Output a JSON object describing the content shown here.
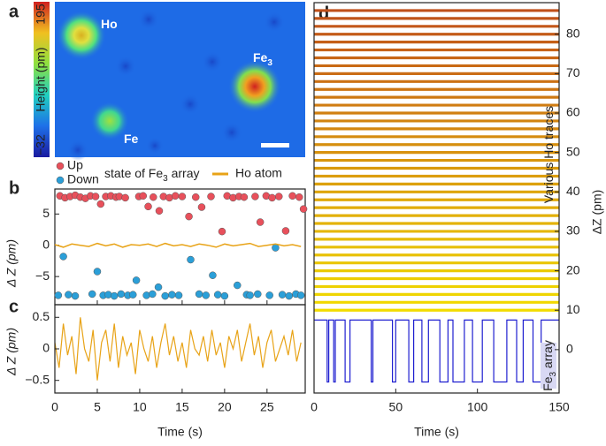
{
  "chart_data": [
    {
      "type": "image",
      "panel_label": "a",
      "colorbar_label": "Height (pm)",
      "clim": [
        -32,
        195
      ],
      "colorbar_ticks": [
        195,
        {
          "value": -32,
          "label": "−32"
        }
      ],
      "annotations": [
        {
          "text": "Ho"
        },
        {
          "text": "Fe",
          "sub": "3"
        },
        {
          "text": "Fe"
        }
      ]
    },
    {
      "type": "scatter",
      "panel_label": "b",
      "ylabel": "Δ Z (pm)",
      "legend": {
        "title": {
          "text": "state of Fe",
          "sub": "3",
          "tail": " array"
        }
      },
      "xlim": [
        0,
        29.5
      ],
      "ylim": [
        -9.5,
        9
      ],
      "xticks": [
        0,
        5,
        10,
        15,
        20,
        25
      ],
      "yticks": [
        {
          "value": -5,
          "label": "−5"
        },
        0,
        5
      ],
      "series": [
        {
          "name": "Up",
          "color": "#e8505b",
          "x": [
            0.6,
            1.2,
            1.8,
            2.4,
            3.0,
            3.6,
            4.2,
            4.8,
            5.4,
            6.0,
            6.6,
            7.2,
            7.6,
            8.3,
            9.9,
            10.4,
            11.0,
            11.6,
            12.3,
            12.8,
            13.5,
            14.2,
            15.0,
            15.8,
            16.6,
            17.3,
            18.4,
            19.7,
            20.3,
            21.0,
            21.7,
            22.3,
            23.6,
            24.2,
            24.9,
            25.6,
            26.4,
            27.2,
            28.0,
            28.8,
            29.3
          ],
          "values": [
            7.9,
            7.6,
            7.8,
            8.0,
            7.7,
            7.5,
            7.9,
            7.8,
            6.6,
            7.8,
            7.9,
            7.7,
            7.8,
            7.6,
            7.8,
            7.9,
            6.2,
            7.7,
            5.5,
            7.8,
            7.6,
            7.9,
            7.8,
            4.6,
            7.7,
            6.1,
            7.8,
            2.2,
            7.9,
            7.6,
            7.8,
            7.7,
            7.8,
            3.7,
            7.9,
            7.6,
            7.8,
            2.3,
            7.9,
            7.7,
            5.8
          ]
        },
        {
          "name": "Down",
          "color": "#2b9fd8",
          "x": [
            0.4,
            1.0,
            1.6,
            2.4,
            4.4,
            5.0,
            5.7,
            6.3,
            7.0,
            7.8,
            8.6,
            9.2,
            9.6,
            10.8,
            11.5,
            12.2,
            13.0,
            13.8,
            14.6,
            16.0,
            17.0,
            17.8,
            18.6,
            19.2,
            20.0,
            21.5,
            22.6,
            23.0,
            23.9,
            25.3,
            26.0,
            26.8,
            27.6,
            28.4,
            29.0
          ],
          "values": [
            -8.0,
            -1.8,
            -7.9,
            -8.1,
            -7.8,
            -4.2,
            -8.0,
            -7.9,
            -8.1,
            -7.8,
            -8.0,
            -7.9,
            -5.6,
            -8.0,
            -7.8,
            -6.7,
            -8.1,
            -7.9,
            -8.0,
            -2.3,
            -7.8,
            -8.0,
            -4.8,
            -7.9,
            -8.1,
            -6.4,
            -7.9,
            -8.0,
            -7.8,
            -8.0,
            -0.4,
            -7.9,
            -8.1,
            -7.8,
            -8.0
          ]
        },
        {
          "name": "Ho atom",
          "color": "#e8a317",
          "kind": "line",
          "x": [
            0,
            1,
            2,
            3,
            4,
            5,
            6,
            7,
            8,
            9,
            10,
            11,
            12,
            13,
            14,
            15,
            16,
            17,
            18,
            19,
            20,
            21,
            22,
            23,
            24,
            25,
            26,
            27,
            28,
            29
          ],
          "values": [
            0.1,
            -0.3,
            0.2,
            0.0,
            -0.2,
            0.3,
            -0.1,
            0.2,
            -0.3,
            0.1,
            0.0,
            0.2,
            -0.2,
            0.3,
            -0.1,
            0.1,
            -0.2,
            0.2,
            0.0,
            -0.3,
            0.2,
            -0.1,
            0.1,
            0.3,
            -0.2,
            0.0,
            0.2,
            -0.1,
            0.1,
            -0.2
          ]
        }
      ]
    },
    {
      "type": "line",
      "panel_label": "c",
      "ylabel": "Δ Z (pm)",
      "xlabel": "Time (s)",
      "xlim": [
        0,
        29.5
      ],
      "ylim": [
        -0.7,
        0.7
      ],
      "xticks": [
        0,
        5,
        10,
        15,
        20,
        25
      ],
      "yticks": [
        {
          "value": -0.5,
          "label": "−0.5"
        },
        0,
        0.5
      ],
      "series": [
        {
          "color": "#e8a317",
          "x": [
            0,
            0.5,
            1,
            1.5,
            2,
            2.5,
            3,
            3.5,
            4,
            4.5,
            5,
            5.5,
            6,
            6.5,
            7,
            7.5,
            8,
            8.5,
            9,
            9.5,
            10,
            10.5,
            11,
            11.5,
            12,
            12.5,
            13,
            13.5,
            14,
            14.5,
            15,
            15.5,
            16,
            16.5,
            17,
            17.5,
            18,
            18.5,
            19,
            19.5,
            20,
            20.5,
            21,
            21.5,
            22,
            22.5,
            23,
            23.5,
            24,
            24.5,
            25,
            25.5,
            26,
            26.5,
            27,
            27.5,
            28,
            28.5,
            29
          ],
          "values": [
            0.1,
            -0.3,
            0.4,
            -0.1,
            0.2,
            -0.4,
            0.5,
            0.0,
            -0.2,
            0.3,
            -0.5,
            0.1,
            0.3,
            -0.2,
            0.4,
            -0.3,
            0.2,
            -0.1,
            0.1,
            -0.4,
            0.3,
            0.0,
            -0.2,
            0.2,
            -0.3,
            0.1,
            0.4,
            -0.1,
            0.2,
            -0.2,
            0.1,
            -0.3,
            0.3,
            0.0,
            -0.1,
            0.2,
            -0.2,
            0.3,
            -0.1,
            0.1,
            -0.3,
            0.2,
            0.0,
            0.3,
            -0.2,
            0.1,
            0.4,
            -0.1,
            0.2,
            -0.3,
            0.1,
            0.3,
            -0.2,
            0.0,
            0.2,
            -0.1,
            0.3,
            -0.2,
            0.1
          ]
        }
      ]
    },
    {
      "type": "line",
      "panel_label": "d",
      "ylabel": "ΔZ (pm)",
      "xlabel": "Time (s)",
      "xlim": [
        0,
        150
      ],
      "ylim": [
        -11,
        88
      ],
      "xticks": [
        0,
        50,
        100,
        150
      ],
      "yticks": [
        0,
        10,
        20,
        30,
        40,
        50,
        60,
        70,
        80
      ],
      "annotations": [
        {
          "text": "Various Ho traces"
        },
        {
          "text": "Fe",
          "sub": "3",
          "tail": " array"
        }
      ],
      "trace_colors": [
        "#f2dc00",
        "#c0501a"
      ],
      "trace_offsets": [
        10,
        12,
        14,
        16,
        18,
        20,
        22,
        24,
        26,
        28,
        30,
        32,
        34,
        36,
        38,
        40,
        42,
        44,
        46,
        48,
        50,
        52,
        54,
        56,
        58,
        60,
        62,
        64,
        66,
        68,
        70,
        72,
        74,
        76,
        78,
        80,
        82,
        84,
        86
      ],
      "series": [
        {
          "color": "#1f1fd0",
          "x": [
            0,
            8,
            8,
            9,
            9,
            12,
            12,
            13,
            13,
            19,
            19,
            22,
            22,
            35,
            35,
            36,
            36,
            48,
            48,
            50,
            50,
            58,
            58,
            61,
            61,
            66,
            66,
            70,
            70,
            77,
            77,
            82,
            82,
            85,
            85,
            92,
            92,
            97,
            97,
            103,
            103,
            110,
            110,
            118,
            118,
            124,
            124,
            128,
            128,
            134,
            134,
            139,
            139,
            150
          ],
          "values": [
            7.5,
            7.5,
            -8.2,
            -8.2,
            7.5,
            7.5,
            -8.2,
            -8.2,
            7.5,
            7.5,
            -8.2,
            -8.2,
            7.5,
            7.5,
            -8.2,
            -8.2,
            7.5,
            7.5,
            -8.2,
            -8.2,
            7.5,
            7.5,
            -8.2,
            -8.2,
            7.5,
            7.5,
            -8.2,
            -8.2,
            7.5,
            7.5,
            -8.2,
            -8.2,
            7.5,
            7.5,
            -8.2,
            -8.2,
            7.5,
            7.5,
            -8.2,
            -8.2,
            7.5,
            7.5,
            -8.2,
            -8.2,
            7.5,
            7.5,
            -8.2,
            -8.2,
            7.5,
            7.5,
            -8.2,
            -8.2,
            7.5,
            7.5
          ]
        }
      ]
    }
  ]
}
